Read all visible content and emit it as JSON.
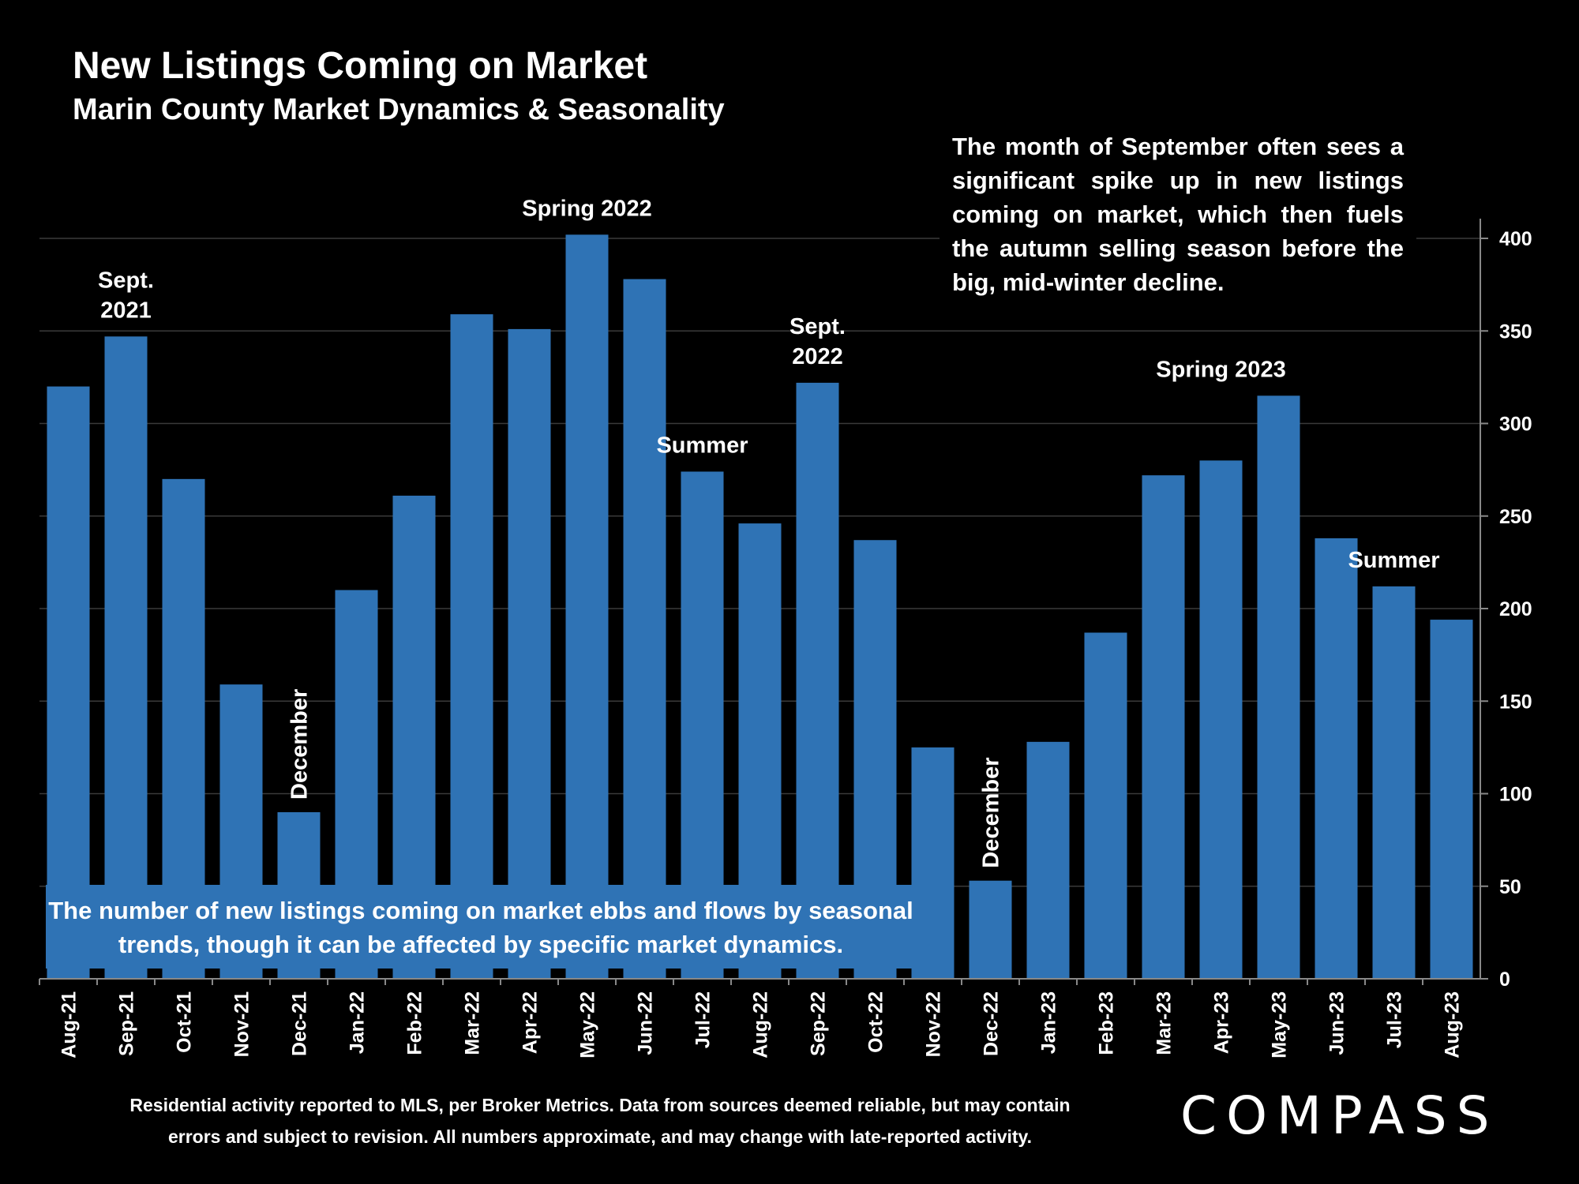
{
  "header": {
    "title": "New Listings Coming on Market",
    "subtitle": "Marin County Market Dynamics & Seasonality"
  },
  "callouts": {
    "top_right": "The month of September often sees a significant spike up in new listings coming on market, which then fuels the autumn selling season before the big, mid-winter decline.",
    "bottom": "The number of new listings coming on market ebbs and flows by seasonal trends, though it can be affected by specific market dynamics."
  },
  "footer": {
    "note_line1": "Residential activity reported to MLS, per Broker Metrics. Data from sources deemed reliable, but may contain",
    "note_line2": "errors and subject to revision. All numbers approximate, and may change with late-reported activity.",
    "logo": "COMPASS"
  },
  "colors": {
    "bar": "#2f73b5",
    "background": "#000000",
    "grid": "#3a3a3a",
    "text": "#ffffff"
  },
  "chart_data": {
    "type": "bar",
    "title": "New Listings Coming on Market",
    "subtitle": "Marin County Market Dynamics & Seasonality",
    "categories": [
      "Aug-21",
      "Sep-21",
      "Oct-21",
      "Nov-21",
      "Dec-21",
      "Jan-22",
      "Feb-22",
      "Mar-22",
      "Apr-22",
      "May-22",
      "Jun-22",
      "Jul-22",
      "Aug-22",
      "Sep-22",
      "Oct-22",
      "Nov-22",
      "Dec-22",
      "Jan-23",
      "Feb-23",
      "Mar-23",
      "Apr-23",
      "May-23",
      "Jun-23",
      "Jul-23",
      "Aug-23"
    ],
    "values": [
      320,
      347,
      270,
      159,
      90,
      210,
      261,
      359,
      351,
      402,
      378,
      274,
      246,
      322,
      237,
      125,
      53,
      128,
      187,
      272,
      280,
      315,
      238,
      212,
      194
    ],
    "ylim": [
      0,
      400
    ],
    "yticks": [
      0,
      50,
      100,
      150,
      200,
      250,
      300,
      350,
      400
    ],
    "y_axis_side": "right",
    "grid": true,
    "annotations": [
      {
        "text": [
          "Sept.",
          "2021"
        ],
        "category": "Sep-21",
        "value": 347,
        "rotated": false
      },
      {
        "text": [
          "December"
        ],
        "category": "Dec-21",
        "value": 90,
        "rotated": true
      },
      {
        "text": [
          "Spring 2022"
        ],
        "category": "May-22",
        "value": 402,
        "rotated": false
      },
      {
        "text": [
          "Summer"
        ],
        "category": "Jul-22",
        "value": 274,
        "rotated": false
      },
      {
        "text": [
          "Sept.",
          "2022"
        ],
        "category": "Sep-22",
        "value": 322,
        "rotated": false
      },
      {
        "text": [
          "December"
        ],
        "category": "Dec-22",
        "value": 53,
        "rotated": true
      },
      {
        "text": [
          "Spring 2023"
        ],
        "category": "Apr-23",
        "value": 315,
        "rotated": false
      },
      {
        "text": [
          "Summer"
        ],
        "category": "Jul-23",
        "value": 212,
        "rotated": false
      }
    ]
  }
}
